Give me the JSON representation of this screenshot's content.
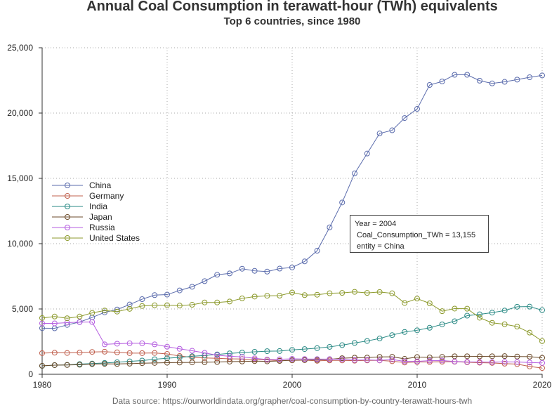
{
  "chart_data": {
    "type": "line",
    "title": "Annual Coal Consumption in terawatt-hour (TWh) equivalents",
    "subtitle": "Top 6 countries, since 1980",
    "source": "Data source: https://ourworldindata.org/grapher/coal-consumption-by-country-terawatt-hours-twh",
    "xlabel": "",
    "ylabel": "",
    "xlim": [
      1980,
      2020
    ],
    "ylim": [
      0,
      25000
    ],
    "x_ticks": [
      1980,
      1990,
      2000,
      2010,
      2020
    ],
    "y_ticks": [
      0,
      5000,
      10000,
      15000,
      20000,
      25000
    ],
    "x_tick_labels": [
      "1980",
      "1990",
      "2000",
      "2010",
      "2020"
    ],
    "y_tick_labels": [
      "0",
      "5,000",
      "10,000",
      "15,000",
      "20,000",
      "25,000"
    ],
    "grid": true,
    "legend_position": "left",
    "x": [
      1980,
      1981,
      1982,
      1983,
      1984,
      1985,
      1986,
      1987,
      1988,
      1989,
      1990,
      1991,
      1992,
      1993,
      1994,
      1995,
      1996,
      1997,
      1998,
      1999,
      2000,
      2001,
      2002,
      2003,
      2004,
      2005,
      2006,
      2007,
      2008,
      2009,
      2010,
      2011,
      2012,
      2013,
      2014,
      2015,
      2016,
      2017,
      2018,
      2019,
      2020
    ],
    "series": [
      {
        "name": "China",
        "color": "#5a6bac",
        "values": [
          3530,
          3520,
          3780,
          4000,
          4350,
          4740,
          4960,
          5340,
          5750,
          6060,
          6100,
          6420,
          6700,
          7130,
          7620,
          7720,
          8080,
          7920,
          7860,
          8090,
          8180,
          8640,
          9460,
          11250,
          13155,
          15380,
          16900,
          18440,
          18680,
          19620,
          20320,
          22150,
          22420,
          22930,
          22930,
          22480,
          22270,
          22390,
          22560,
          22740,
          22880
        ]
      },
      {
        "name": "Germany",
        "color": "#c0604e",
        "values": [
          1620,
          1650,
          1630,
          1660,
          1710,
          1730,
          1680,
          1620,
          1620,
          1630,
          1560,
          1400,
          1300,
          1250,
          1220,
          1180,
          1170,
          1120,
          1100,
          1050,
          1060,
          1080,
          1030,
          1060,
          1060,
          1040,
          1060,
          1060,
          1000,
          900,
          940,
          940,
          960,
          960,
          920,
          890,
          870,
          810,
          780,
          600,
          480
        ]
      },
      {
        "name": "India",
        "color": "#2a8a85",
        "values": [
          640,
          700,
          720,
          780,
          820,
          870,
          920,
          990,
          1050,
          1150,
          1230,
          1290,
          1380,
          1440,
          1520,
          1600,
          1660,
          1720,
          1770,
          1780,
          1870,
          1930,
          2000,
          2100,
          2230,
          2400,
          2550,
          2740,
          3000,
          3240,
          3370,
          3560,
          3820,
          4060,
          4490,
          4590,
          4720,
          4880,
          5170,
          5180,
          4910
        ]
      },
      {
        "name": "Japan",
        "color": "#6b4a2a",
        "values": [
          650,
          700,
          710,
          730,
          780,
          800,
          790,
          810,
          850,
          870,
          890,
          900,
          910,
          920,
          940,
          970,
          980,
          1010,
          990,
          1020,
          1080,
          1090,
          1100,
          1140,
          1230,
          1270,
          1280,
          1330,
          1340,
          1180,
          1320,
          1290,
          1330,
          1380,
          1380,
          1370,
          1380,
          1390,
          1360,
          1350,
          1260
        ]
      },
      {
        "name": "Russia",
        "color": "#b55ee0",
        "values": [
          3900,
          3900,
          3950,
          3990,
          4000,
          2290,
          2340,
          2370,
          2370,
          2290,
          2110,
          1950,
          1800,
          1640,
          1460,
          1380,
          1330,
          1220,
          1130,
          1150,
          1180,
          1170,
          1160,
          1160,
          1150,
          1090,
          1100,
          1070,
          1130,
          990,
          990,
          1040,
          1050,
          980,
          950,
          940,
          930,
          950,
          940,
          900,
          870
        ]
      },
      {
        "name": "United States",
        "color": "#8c9a2c",
        "values": [
          4310,
          4420,
          4290,
          4420,
          4700,
          4880,
          4800,
          5010,
          5230,
          5280,
          5290,
          5260,
          5320,
          5500,
          5500,
          5570,
          5810,
          5950,
          6010,
          6020,
          6260,
          6060,
          6090,
          6200,
          6230,
          6310,
          6230,
          6300,
          6200,
          5460,
          5790,
          5430,
          4830,
          5030,
          5020,
          4330,
          3940,
          3830,
          3650,
          3190,
          2540
        ]
      }
    ],
    "tooltip": {
      "lines": [
        "Year = 2004",
        " Coal_Consumption_TWh = 13,155",
        " entity = China"
      ],
      "point": {
        "series": "China",
        "x": 2004,
        "y": 13155
      }
    }
  }
}
